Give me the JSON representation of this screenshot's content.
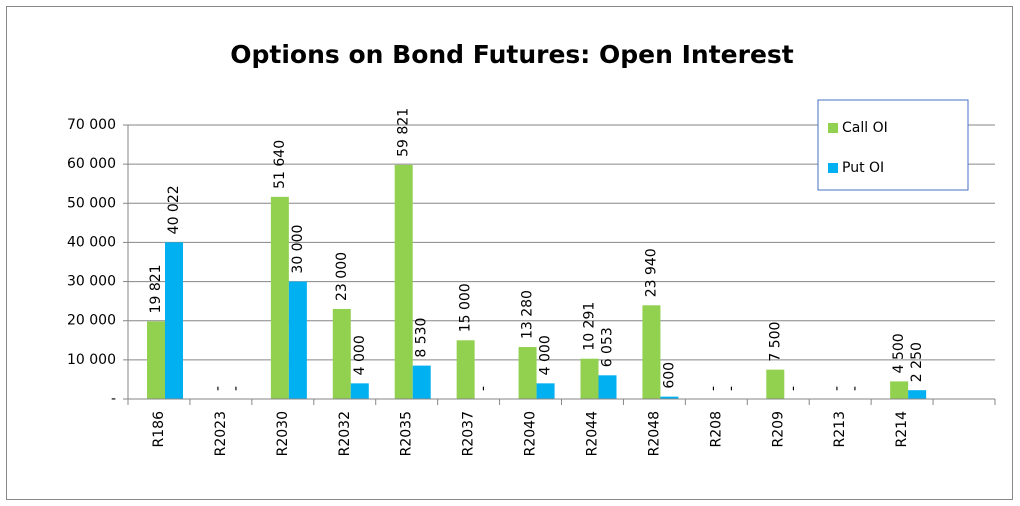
{
  "chart_data": {
    "type": "bar",
    "title": "Options on Bond Futures: Open Interest",
    "categories": [
      "R186",
      "R2023",
      "R2030",
      "R2032",
      "R2035",
      "R2037",
      "R2040",
      "R2044",
      "R2048",
      "R208",
      "R209",
      "R213",
      "R214",
      null
    ],
    "series": [
      {
        "name": "Call OI",
        "color": "#92d050",
        "values": [
          19821,
          0,
          51640,
          23000,
          59821,
          15000,
          13280,
          10291,
          23940,
          0,
          7500,
          0,
          4500,
          null
        ],
        "value_labels": [
          "19 821",
          "-",
          "51 640",
          "23 000",
          "59 821",
          "15 000",
          "13 280",
          "10 291",
          "23 940",
          "-",
          "7 500",
          "-",
          "4 500",
          null
        ]
      },
      {
        "name": "Put OI",
        "color": "#00b0f0",
        "values": [
          40022,
          0,
          30000,
          4000,
          8530,
          0,
          4000,
          6053,
          600,
          0,
          0,
          0,
          2250,
          null
        ],
        "value_labels": [
          "40 022",
          "-",
          "30 000",
          "4 000",
          "8 530",
          "-",
          "4 000",
          "6 053",
          "600",
          "-",
          "-",
          "-",
          "2 250",
          null
        ]
      }
    ],
    "ylim": [
      0,
      70000
    ],
    "yticks": [
      {
        "value": 0,
        "label": "-"
      },
      {
        "value": 10000,
        "label": "10 000"
      },
      {
        "value": 20000,
        "label": "20 000"
      },
      {
        "value": 30000,
        "label": "30 000"
      },
      {
        "value": 40000,
        "label": "40 000"
      },
      {
        "value": 50000,
        "label": "50 000"
      },
      {
        "value": 60000,
        "label": "60 000"
      },
      {
        "value": 70000,
        "label": "70 000"
      }
    ],
    "grid": true,
    "legend": "top-right"
  }
}
